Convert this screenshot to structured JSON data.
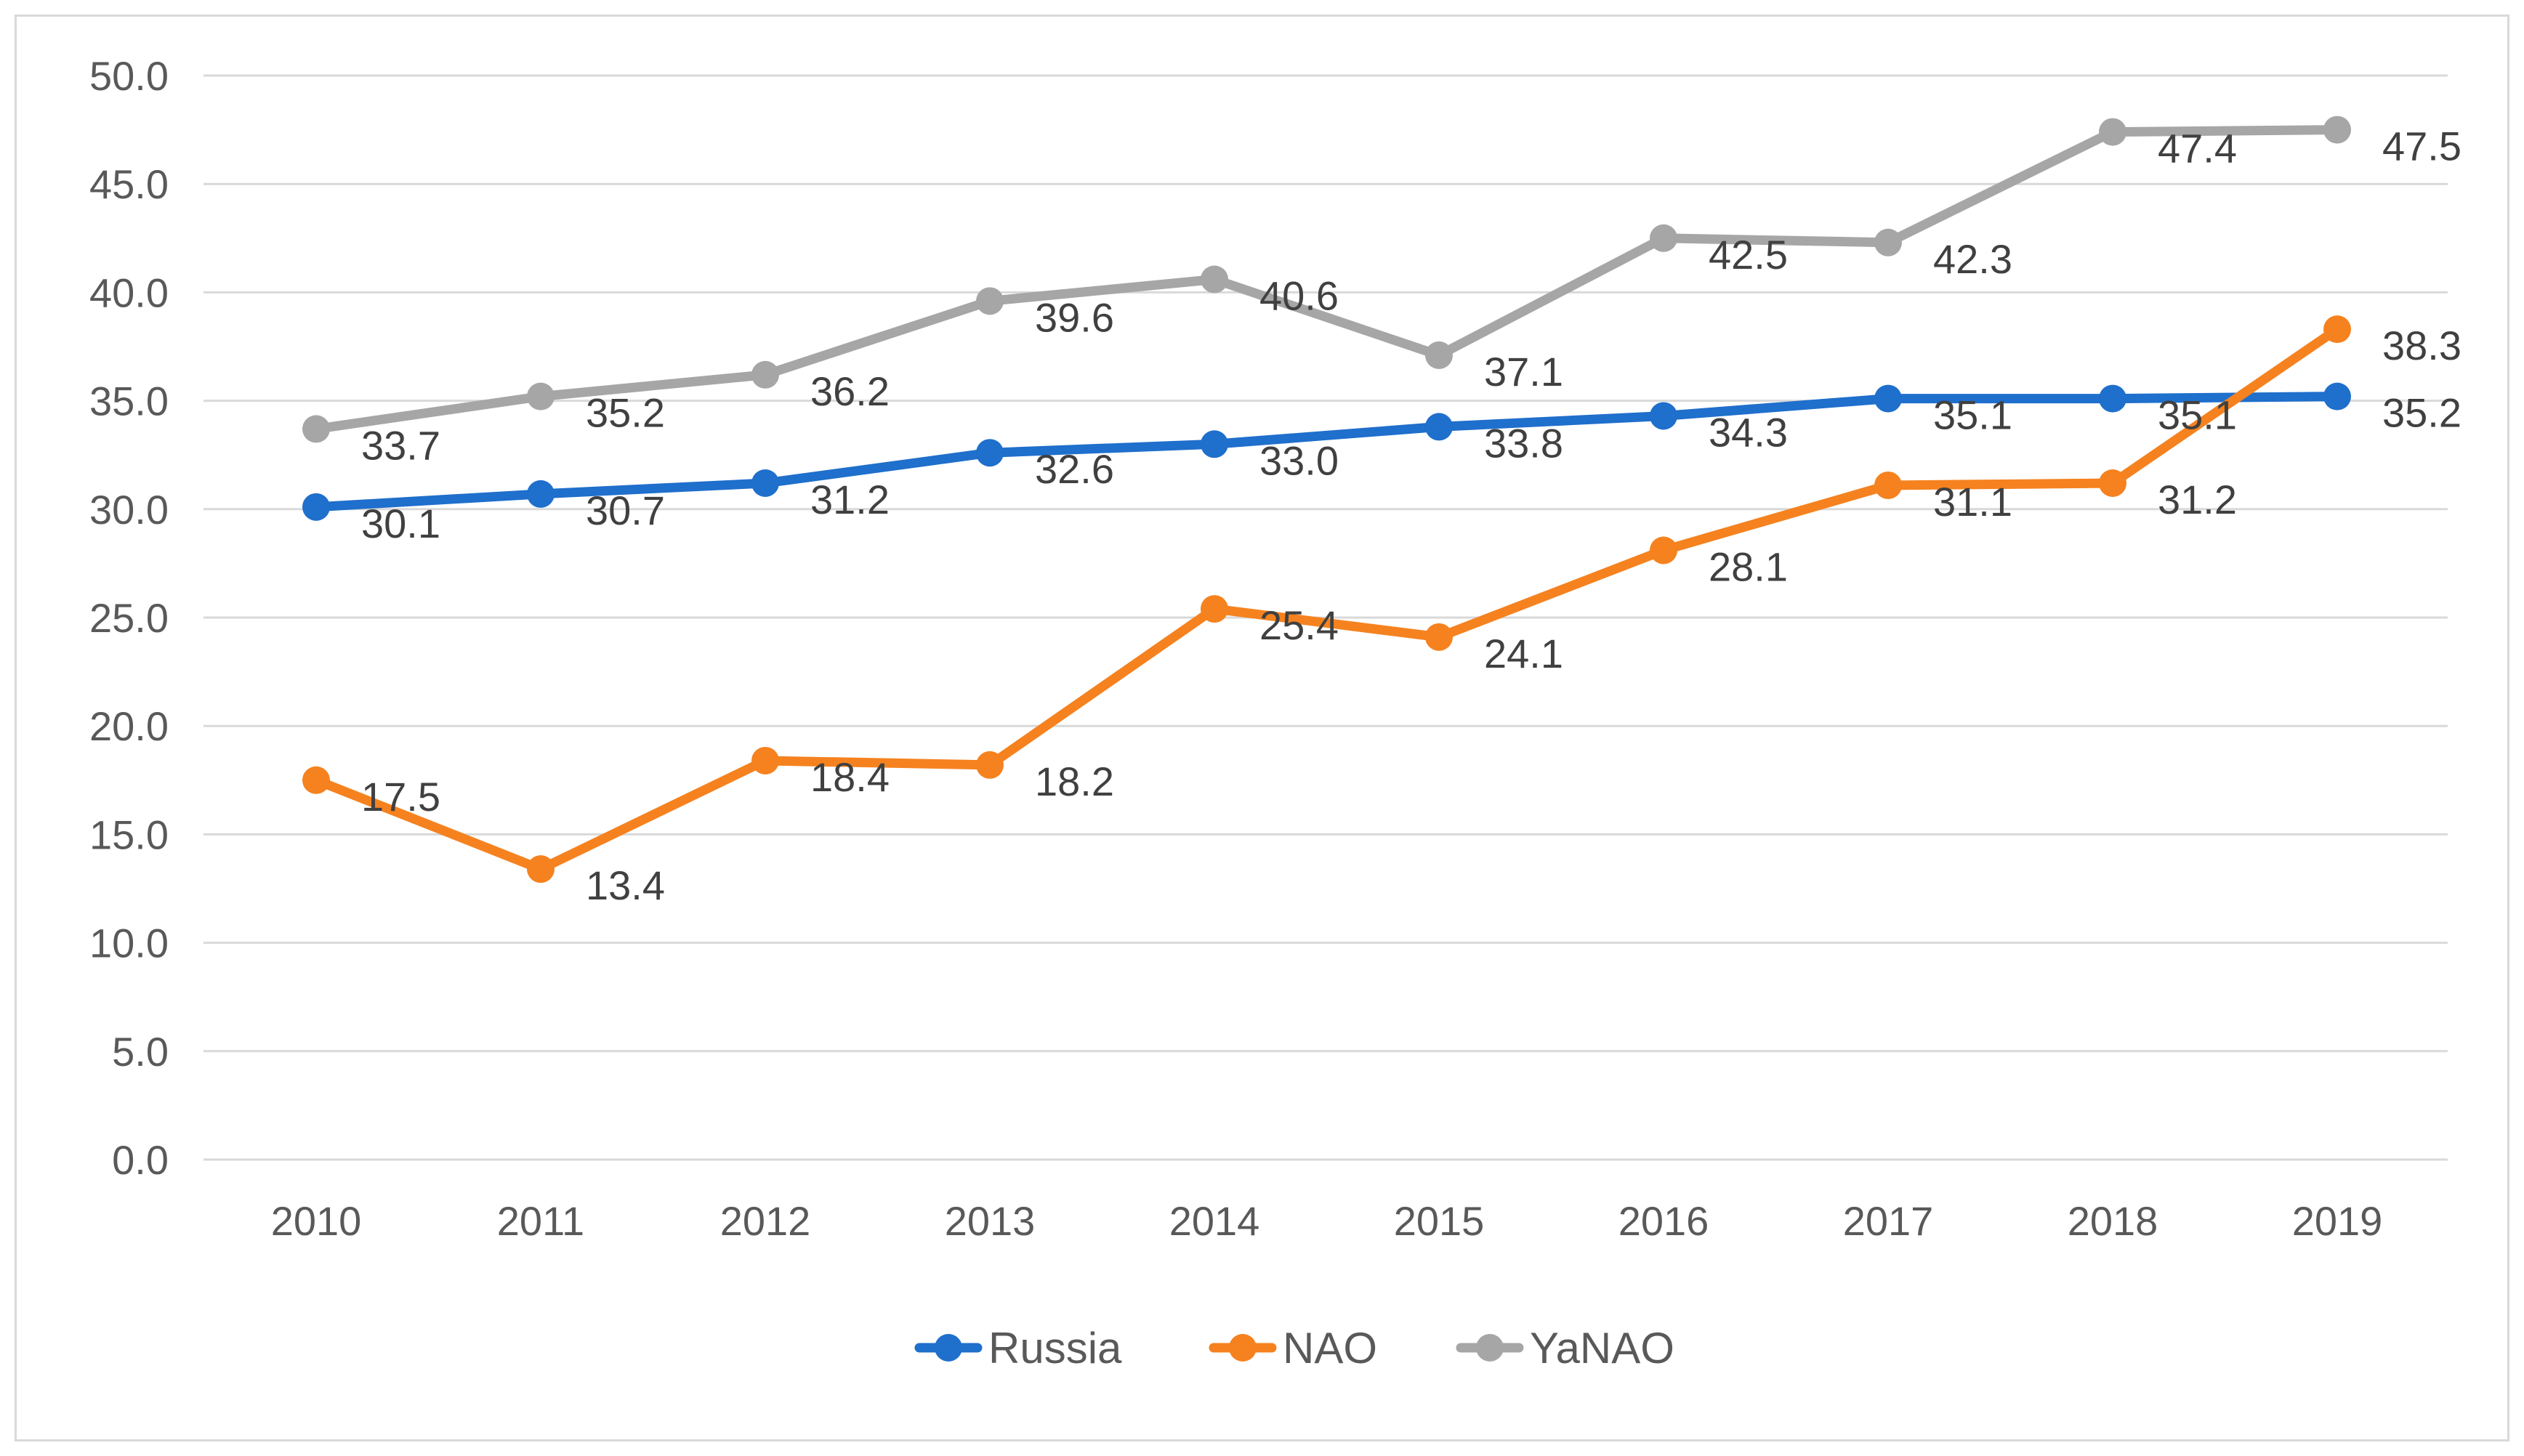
{
  "chart_data": {
    "type": "line",
    "title": "",
    "xlabel": "",
    "ylabel": "",
    "ylim": [
      0,
      50
    ],
    "yticks": [
      "0.0",
      "5.0",
      "10.0",
      "15.0",
      "20.0",
      "25.0",
      "30.0",
      "35.0",
      "40.0",
      "45.0",
      "50.0"
    ],
    "ytick_values": [
      0,
      5,
      10,
      15,
      20,
      25,
      30,
      35,
      40,
      45,
      50
    ],
    "categories": [
      "2010",
      "2011",
      "2012",
      "2013",
      "2014",
      "2015",
      "2016",
      "2017",
      "2018",
      "2019"
    ],
    "grid": true,
    "legend_position": "bottom",
    "series": [
      {
        "name": "Russia",
        "color": "#1f6fcc",
        "values": [
          30.1,
          30.7,
          31.2,
          32.6,
          33.0,
          33.8,
          34.3,
          35.1,
          35.1,
          35.2
        ],
        "labels": [
          "30.1",
          "30.7",
          "31.2",
          "32.6",
          "33.0",
          "33.8",
          "34.3",
          "35.1",
          "35.1",
          "35.2"
        ]
      },
      {
        "name": "NAO",
        "color": "#f5821f",
        "values": [
          17.5,
          13.4,
          18.4,
          18.2,
          25.4,
          24.1,
          28.1,
          31.1,
          31.2,
          38.3
        ],
        "labels": [
          "17.5",
          "13.4",
          "18.4",
          "18.2",
          "25.4",
          "24.1",
          "28.1",
          "31.1",
          "31.2",
          "38.3"
        ]
      },
      {
        "name": "YaNAO",
        "color": "#a6a6a6",
        "values": [
          33.7,
          35.2,
          36.2,
          39.6,
          40.6,
          37.1,
          42.5,
          42.3,
          47.4,
          47.5
        ],
        "labels": [
          "33.7",
          "35.2",
          "36.2",
          "39.6",
          "40.6",
          "37.1",
          "42.5",
          "42.3",
          "47.4",
          "47.5"
        ]
      }
    ]
  }
}
